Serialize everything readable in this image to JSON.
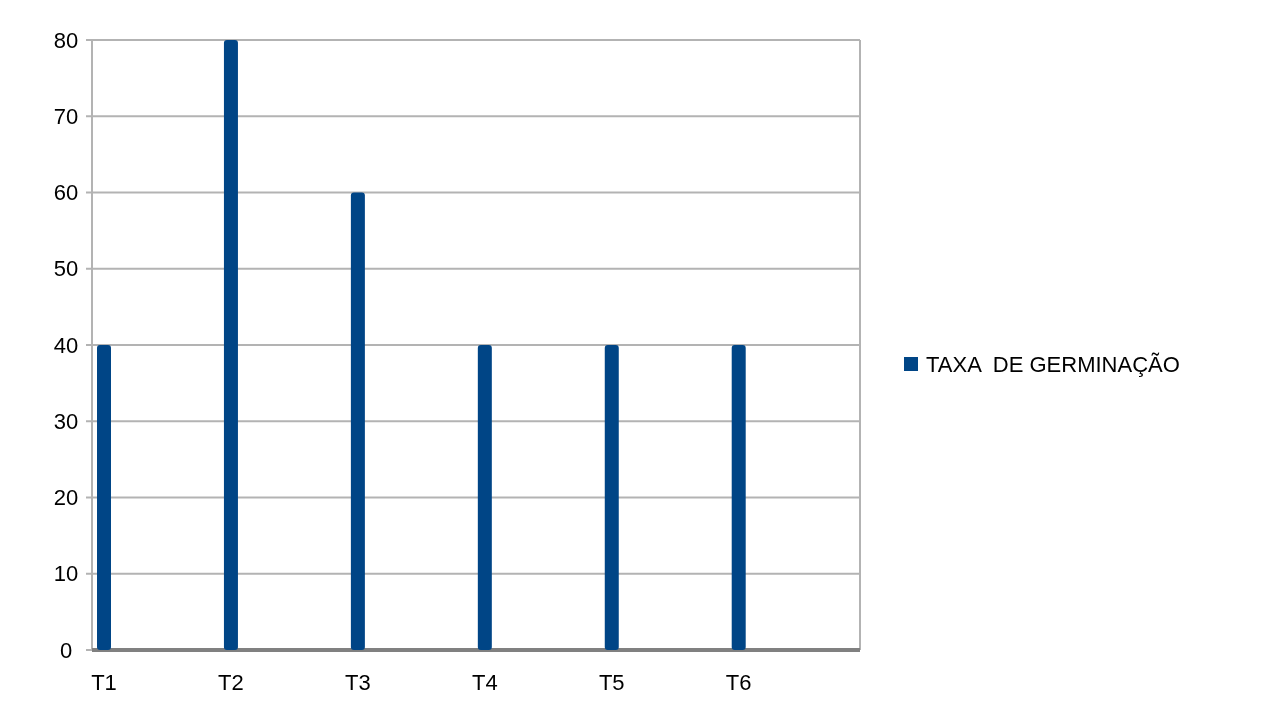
{
  "chart_data": {
    "type": "bar",
    "categories": [
      "T1",
      "T2",
      "T3",
      "T4",
      "T5",
      "T6"
    ],
    "series": [
      {
        "name": "TAXA  DE GERMINAÇÃO",
        "color": "#004586",
        "values": [
          40,
          80,
          60,
          40,
          40,
          40
        ]
      }
    ],
    "ylim": [
      0,
      80
    ],
    "yticks": [
      0,
      10,
      20,
      30,
      40,
      50,
      60,
      70,
      80
    ],
    "grid": "y",
    "legend": "right"
  }
}
